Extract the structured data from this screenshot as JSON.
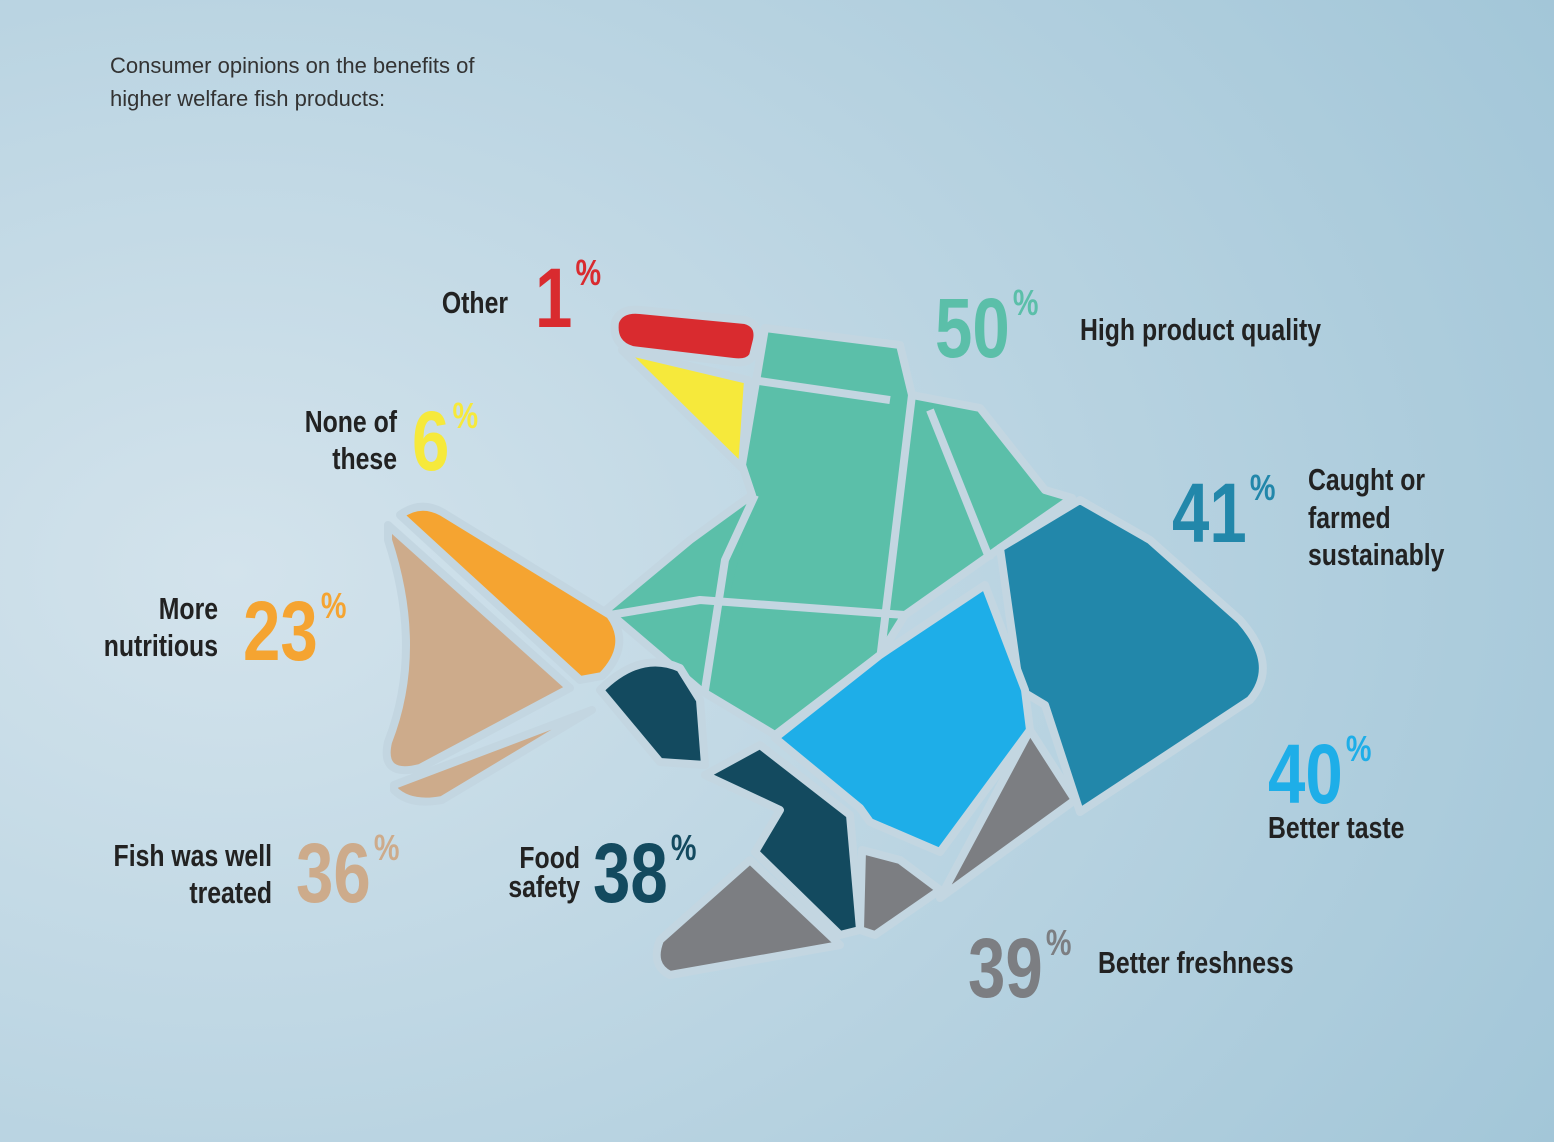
{
  "title": [
    "Consumer opinions on the benefits of",
    "higher welfare fish products:"
  ],
  "unit": "%",
  "items": [
    {
      "label": [
        "Other"
      ],
      "value": 1,
      "color": "#d92b2f"
    },
    {
      "label": [
        "None of",
        "these"
      ],
      "value": 6,
      "color": "#f6e93b"
    },
    {
      "label": [
        "High product quality"
      ],
      "value": 50,
      "color": "#5bbfa9"
    },
    {
      "label": [
        "Caught or",
        "farmed",
        "sustainably"
      ],
      "value": 41,
      "color": "#2287aa"
    },
    {
      "label": [
        "More",
        "nutritious"
      ],
      "value": 23,
      "color": "#f5a431"
    },
    {
      "label": [
        "Better taste"
      ],
      "value": 40,
      "color": "#1eaee8"
    },
    {
      "label": [
        "Fish was well",
        "treated"
      ],
      "value": 36,
      "color": "#cdab8b"
    },
    {
      "label": [
        "Food",
        "safety"
      ],
      "value": 38,
      "color": "#134a5f"
    },
    {
      "label": [
        "Better freshness"
      ],
      "value": 39,
      "color": "#7c7e82"
    }
  ]
}
